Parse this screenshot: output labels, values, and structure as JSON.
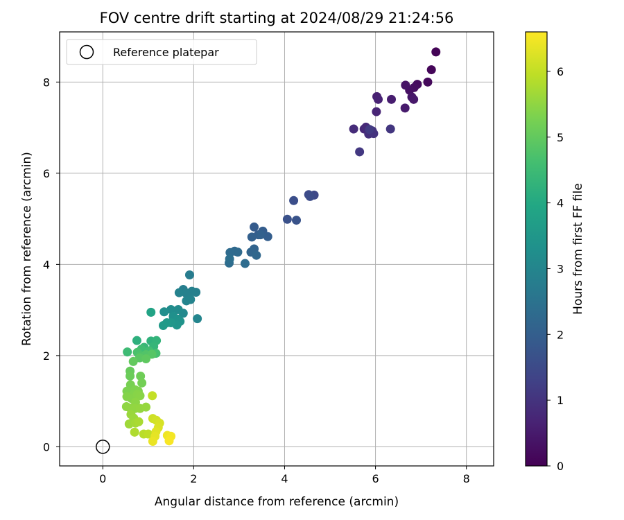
{
  "chart_data": {
    "type": "scatter",
    "title": "FOV centre drift starting at 2024/08/29 21:24:56",
    "xlabel": "Angular distance from reference (arcmin)",
    "ylabel": "Rotation from reference (arcmin)",
    "xlim": [
      -0.95,
      8.6
    ],
    "ylim": [
      -0.42,
      9.1
    ],
    "xticks": [
      0,
      2,
      4,
      6,
      8
    ],
    "yticks": [
      0,
      2,
      4,
      6,
      8
    ],
    "grid": true,
    "colormap": "viridis",
    "colorbar": {
      "label": "Hours from first FF file",
      "min": 0,
      "max": 6.6,
      "ticks": [
        0,
        1,
        2,
        3,
        4,
        5,
        6
      ]
    },
    "legend": {
      "placement": "top-left",
      "entries": [
        {
          "label": "Reference platepar",
          "marker": "open-circle"
        }
      ]
    },
    "reference_point": {
      "x": 0,
      "y": 0
    },
    "points": [
      {
        "x": 7.33,
        "y": 8.66,
        "h": 0.05
      },
      {
        "x": 7.23,
        "y": 8.27,
        "h": 0.1
      },
      {
        "x": 7.15,
        "y": 8.0,
        "h": 0.15
      },
      {
        "x": 6.92,
        "y": 7.95,
        "h": 0.2
      },
      {
        "x": 6.85,
        "y": 7.88,
        "h": 0.25
      },
      {
        "x": 6.75,
        "y": 7.82,
        "h": 0.3
      },
      {
        "x": 6.66,
        "y": 7.93,
        "h": 0.35
      },
      {
        "x": 6.8,
        "y": 7.67,
        "h": 0.4
      },
      {
        "x": 6.84,
        "y": 7.62,
        "h": 0.45
      },
      {
        "x": 6.65,
        "y": 7.43,
        "h": 0.5
      },
      {
        "x": 6.35,
        "y": 7.62,
        "h": 0.55
      },
      {
        "x": 6.03,
        "y": 7.68,
        "h": 0.6
      },
      {
        "x": 6.06,
        "y": 7.62,
        "h": 0.65
      },
      {
        "x": 6.02,
        "y": 7.35,
        "h": 0.7
      },
      {
        "x": 5.75,
        "y": 6.97,
        "h": 0.75
      },
      {
        "x": 5.79,
        "y": 7.01,
        "h": 0.8
      },
      {
        "x": 5.52,
        "y": 6.97,
        "h": 0.85
      },
      {
        "x": 5.85,
        "y": 6.86,
        "h": 0.9
      },
      {
        "x": 5.93,
        "y": 6.93,
        "h": 0.95
      },
      {
        "x": 5.96,
        "y": 6.87,
        "h": 1.0
      },
      {
        "x": 6.33,
        "y": 6.97,
        "h": 1.05
      },
      {
        "x": 5.65,
        "y": 6.47,
        "h": 1.1
      },
      {
        "x": 5.87,
        "y": 6.96,
        "h": 1.15
      },
      {
        "x": 4.65,
        "y": 5.52,
        "h": 1.45
      },
      {
        "x": 4.53,
        "y": 5.53,
        "h": 1.5
      },
      {
        "x": 4.56,
        "y": 5.49,
        "h": 1.55
      },
      {
        "x": 4.2,
        "y": 5.4,
        "h": 1.6
      },
      {
        "x": 4.06,
        "y": 4.99,
        "h": 1.65
      },
      {
        "x": 4.26,
        "y": 4.97,
        "h": 1.7
      },
      {
        "x": 3.33,
        "y": 4.82,
        "h": 1.9
      },
      {
        "x": 3.42,
        "y": 4.65,
        "h": 1.93
      },
      {
        "x": 3.52,
        "y": 4.73,
        "h": 1.96
      },
      {
        "x": 3.63,
        "y": 4.61,
        "h": 1.99
      },
      {
        "x": 3.28,
        "y": 4.6,
        "h": 2.02
      },
      {
        "x": 3.47,
        "y": 4.65,
        "h": 2.05
      },
      {
        "x": 3.33,
        "y": 4.34,
        "h": 2.1
      },
      {
        "x": 3.26,
        "y": 4.27,
        "h": 2.15
      },
      {
        "x": 3.38,
        "y": 4.2,
        "h": 2.2
      },
      {
        "x": 2.9,
        "y": 4.29,
        "h": 2.25
      },
      {
        "x": 2.97,
        "y": 4.27,
        "h": 2.28
      },
      {
        "x": 2.8,
        "y": 4.26,
        "h": 2.31
      },
      {
        "x": 3.13,
        "y": 4.02,
        "h": 2.34
      },
      {
        "x": 2.78,
        "y": 4.03,
        "h": 2.37
      },
      {
        "x": 2.79,
        "y": 4.12,
        "h": 2.4
      },
      {
        "x": 1.91,
        "y": 3.77,
        "h": 2.75
      },
      {
        "x": 1.77,
        "y": 3.45,
        "h": 2.8
      },
      {
        "x": 2.05,
        "y": 3.39,
        "h": 2.83
      },
      {
        "x": 1.96,
        "y": 3.41,
        "h": 2.86
      },
      {
        "x": 1.83,
        "y": 3.37,
        "h": 2.89
      },
      {
        "x": 1.68,
        "y": 3.38,
        "h": 2.92
      },
      {
        "x": 1.93,
        "y": 3.23,
        "h": 2.95
      },
      {
        "x": 1.84,
        "y": 3.2,
        "h": 2.98
      },
      {
        "x": 2.08,
        "y": 2.81,
        "h": 3.01
      },
      {
        "x": 1.77,
        "y": 2.93,
        "h": 3.1
      },
      {
        "x": 1.66,
        "y": 3.01,
        "h": 3.15
      },
      {
        "x": 1.5,
        "y": 3.01,
        "h": 3.2
      },
      {
        "x": 1.35,
        "y": 2.96,
        "h": 3.25
      },
      {
        "x": 1.55,
        "y": 2.86,
        "h": 3.3
      },
      {
        "x": 1.65,
        "y": 2.8,
        "h": 3.35
      },
      {
        "x": 1.7,
        "y": 2.75,
        "h": 3.4
      },
      {
        "x": 1.63,
        "y": 2.67,
        "h": 3.45
      },
      {
        "x": 1.5,
        "y": 2.72,
        "h": 3.5
      },
      {
        "x": 1.41,
        "y": 2.72,
        "h": 3.55
      },
      {
        "x": 1.33,
        "y": 2.66,
        "h": 3.6
      },
      {
        "x": 1.06,
        "y": 2.95,
        "h": 3.85
      },
      {
        "x": 0.75,
        "y": 2.33,
        "h": 4.2
      },
      {
        "x": 1.06,
        "y": 2.32,
        "h": 4.25
      },
      {
        "x": 1.18,
        "y": 2.33,
        "h": 4.3
      },
      {
        "x": 1.12,
        "y": 2.2,
        "h": 4.35
      },
      {
        "x": 0.91,
        "y": 2.18,
        "h": 4.4
      },
      {
        "x": 0.54,
        "y": 2.08,
        "h": 4.5
      },
      {
        "x": 0.85,
        "y": 2.14,
        "h": 4.55
      },
      {
        "x": 1.02,
        "y": 2.1,
        "h": 4.6
      },
      {
        "x": 1.17,
        "y": 2.05,
        "h": 4.65
      },
      {
        "x": 0.76,
        "y": 2.07,
        "h": 4.7
      },
      {
        "x": 0.83,
        "y": 2.0,
        "h": 4.75
      },
      {
        "x": 0.95,
        "y": 2.02,
        "h": 4.8
      },
      {
        "x": 1.08,
        "y": 2.03,
        "h": 4.85
      },
      {
        "x": 0.81,
        "y": 1.95,
        "h": 4.9
      },
      {
        "x": 0.95,
        "y": 1.93,
        "h": 4.95
      },
      {
        "x": 0.67,
        "y": 1.87,
        "h": 5.0
      },
      {
        "x": 0.6,
        "y": 1.66,
        "h": 5.05
      },
      {
        "x": 0.6,
        "y": 1.55,
        "h": 5.1
      },
      {
        "x": 0.83,
        "y": 1.55,
        "h": 5.15
      },
      {
        "x": 0.86,
        "y": 1.4,
        "h": 5.2
      },
      {
        "x": 0.61,
        "y": 1.36,
        "h": 5.25
      },
      {
        "x": 0.53,
        "y": 1.22,
        "h": 5.3
      },
      {
        "x": 0.71,
        "y": 1.25,
        "h": 5.32
      },
      {
        "x": 0.78,
        "y": 1.22,
        "h": 5.34
      },
      {
        "x": 0.68,
        "y": 1.15,
        "h": 5.36
      },
      {
        "x": 0.53,
        "y": 1.1,
        "h": 5.38
      },
      {
        "x": 0.63,
        "y": 1.06,
        "h": 5.4
      },
      {
        "x": 0.76,
        "y": 1.15,
        "h": 5.42
      },
      {
        "x": 0.82,
        "y": 1.12,
        "h": 5.44
      },
      {
        "x": 0.72,
        "y": 0.98,
        "h": 5.46
      },
      {
        "x": 0.52,
        "y": 0.88,
        "h": 5.48
      },
      {
        "x": 0.6,
        "y": 0.85,
        "h": 5.5
      },
      {
        "x": 0.71,
        "y": 0.84,
        "h": 5.52
      },
      {
        "x": 0.82,
        "y": 0.84,
        "h": 5.54
      },
      {
        "x": 0.95,
        "y": 0.87,
        "h": 5.56
      },
      {
        "x": 0.62,
        "y": 0.71,
        "h": 5.6
      },
      {
        "x": 0.68,
        "y": 0.63,
        "h": 5.62
      },
      {
        "x": 0.58,
        "y": 0.5,
        "h": 5.65
      },
      {
        "x": 0.72,
        "y": 0.52,
        "h": 5.7
      },
      {
        "x": 0.79,
        "y": 0.55,
        "h": 5.75
      },
      {
        "x": 0.7,
        "y": 0.32,
        "h": 5.8
      },
      {
        "x": 0.9,
        "y": 0.28,
        "h": 5.9
      },
      {
        "x": 1.0,
        "y": 0.28,
        "h": 5.95
      },
      {
        "x": 1.09,
        "y": 1.12,
        "h": 6.0
      },
      {
        "x": 1.1,
        "y": 0.62,
        "h": 6.1
      },
      {
        "x": 1.18,
        "y": 0.58,
        "h": 6.15
      },
      {
        "x": 1.25,
        "y": 0.52,
        "h": 6.2
      },
      {
        "x": 1.22,
        "y": 0.42,
        "h": 6.25
      },
      {
        "x": 1.17,
        "y": 0.33,
        "h": 6.3
      },
      {
        "x": 1.15,
        "y": 0.23,
        "h": 6.35
      },
      {
        "x": 1.1,
        "y": 0.12,
        "h": 6.4
      },
      {
        "x": 1.42,
        "y": 0.25,
        "h": 6.45
      },
      {
        "x": 1.5,
        "y": 0.23,
        "h": 6.5
      },
      {
        "x": 1.46,
        "y": 0.13,
        "h": 6.55
      }
    ]
  }
}
